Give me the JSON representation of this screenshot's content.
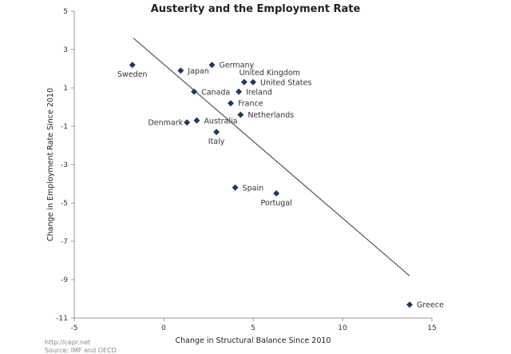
{
  "chart_data": {
    "type": "scatter",
    "title": "Austerity and the Employment Rate",
    "xlabel": "Change in Structural Balance Since 2010",
    "ylabel": "Change in Employment Rate Since 2010",
    "xlim": [
      -5,
      15
    ],
    "ylim": [
      -11,
      5
    ],
    "xticks": [
      -5,
      0,
      5,
      10,
      15
    ],
    "yticks": [
      5,
      3,
      1,
      -1,
      -3,
      -5,
      -7,
      -9,
      -11
    ],
    "grid": false,
    "marker_color": "#1f3a5f",
    "points": [
      {
        "label": "Sweden",
        "x": -1.75,
        "y": 2.2,
        "label_pos": "below"
      },
      {
        "label": "Japan",
        "x": 0.95,
        "y": 1.9,
        "label_pos": "right"
      },
      {
        "label": "Germany",
        "x": 2.7,
        "y": 2.2,
        "label_pos": "right"
      },
      {
        "label": "United Kingdom",
        "x": 4.5,
        "y": 1.3,
        "label_pos": "above"
      },
      {
        "label": "United States",
        "x": 5.0,
        "y": 1.3,
        "label_pos": "right"
      },
      {
        "label": "Canada",
        "x": 1.7,
        "y": 0.8,
        "label_pos": "right"
      },
      {
        "label": "Ireland",
        "x": 4.2,
        "y": 0.8,
        "label_pos": "right"
      },
      {
        "label": "France",
        "x": 3.75,
        "y": 0.2,
        "label_pos": "right"
      },
      {
        "label": "Netherlands",
        "x": 4.3,
        "y": -0.4,
        "label_pos": "right"
      },
      {
        "label": "Denmark",
        "x": 1.3,
        "y": -0.8,
        "label_pos": "left"
      },
      {
        "label": "Australia",
        "x": 1.85,
        "y": -0.7,
        "label_pos": "right"
      },
      {
        "label": "Italy",
        "x": 2.95,
        "y": -1.3,
        "label_pos": "below"
      },
      {
        "label": "Spain",
        "x": 4.0,
        "y": -4.2,
        "label_pos": "right"
      },
      {
        "label": "Portugal",
        "x": 6.3,
        "y": -4.5,
        "label_pos": "below"
      },
      {
        "label": "Greece",
        "x": 13.75,
        "y": -10.3,
        "label_pos": "right"
      }
    ],
    "trendline": {
      "x": [
        -1.7,
        13.75
      ],
      "y": [
        3.6,
        -8.8
      ],
      "color": "#555555"
    }
  },
  "source": {
    "url": "http://cepr.net",
    "text": "Source: IMF and OECD"
  }
}
